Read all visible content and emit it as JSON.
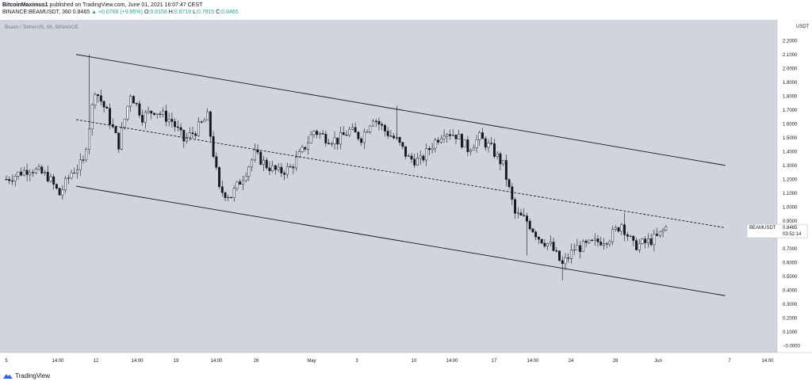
{
  "header": {
    "author": "BitcoinMaximus1",
    "published_text": "published on TradingView.com, June 01, 2021 16:07:47 CEST",
    "symbol": "BINANCE:BEAMUSDT, 360",
    "last": "0.8465",
    "change": "▲ +0.0766 (+9.95%)",
    "ohlc": [
      {
        "k": "O:",
        "v": "0.8158"
      },
      {
        "k": "H:",
        "v": "0.8719"
      },
      {
        "k": "L:",
        "v": "0.7915"
      },
      {
        "k": "C:",
        "v": "0.8465"
      }
    ]
  },
  "footer": {
    "brand": "TradingView"
  },
  "colors": {
    "background": "#d1d4dc",
    "candle": "#131722",
    "text": "#131722",
    "price_label_bg": "#ffffff"
  },
  "chart_data": {
    "type": "candlestick",
    "title": "Beam / TetherUS, 6h, BINANCE",
    "y_unit": "USDT",
    "ylim": [
      -0.05,
      2.35
    ],
    "y_ticks": [
      "2.2000",
      "2.1000",
      "2.0000",
      "1.9000",
      "1.8000",
      "1.7000",
      "1.6000",
      "1.5000",
      "1.4000",
      "1.3000",
      "1.2000",
      "1.1000",
      "1.0000",
      "0.9000",
      "0.8000",
      "0.7000",
      "0.6000",
      "0.5000",
      "0.4000",
      "0.3000",
      "0.2000",
      "0.1000",
      "0.0000"
    ],
    "x_ticks": [
      "5",
      "14:00",
      "12",
      "14:00",
      "19",
      "14:00",
      "26",
      "May",
      "3",
      "10",
      "14:00",
      "17",
      "14:00",
      "24",
      "28",
      "Jun",
      "7",
      "14:00"
    ],
    "grid": false,
    "last_price_label": {
      "symbol": "BEAMUSDT",
      "value": "0.8465",
      "countdown": "03:52:14"
    },
    "price_anchors": [
      [
        0,
        1.2
      ],
      [
        8,
        1.28
      ],
      [
        14,
        1.22
      ],
      [
        18,
        1.09
      ],
      [
        22,
        1.25
      ],
      [
        26,
        1.32
      ],
      [
        30,
        1.85
      ],
      [
        34,
        1.68
      ],
      [
        38,
        1.45
      ],
      [
        42,
        1.82
      ],
      [
        46,
        1.65
      ],
      [
        50,
        1.7
      ],
      [
        56,
        1.62
      ],
      [
        60,
        1.48
      ],
      [
        64,
        1.55
      ],
      [
        68,
        1.65
      ],
      [
        72,
        1.12
      ],
      [
        76,
        1.08
      ],
      [
        80,
        1.22
      ],
      [
        84,
        1.38
      ],
      [
        88,
        1.3
      ],
      [
        92,
        1.25
      ],
      [
        96,
        1.28
      ],
      [
        100,
        1.4
      ],
      [
        104,
        1.55
      ],
      [
        108,
        1.5
      ],
      [
        112,
        1.48
      ],
      [
        116,
        1.55
      ],
      [
        120,
        1.5
      ],
      [
        124,
        1.65
      ],
      [
        128,
        1.55
      ],
      [
        132,
        1.48
      ],
      [
        136,
        1.35
      ],
      [
        140,
        1.33
      ],
      [
        144,
        1.45
      ],
      [
        148,
        1.55
      ],
      [
        152,
        1.52
      ],
      [
        156,
        1.42
      ],
      [
        160,
        1.5
      ],
      [
        164,
        1.42
      ],
      [
        168,
        1.3
      ],
      [
        172,
        0.95
      ],
      [
        176,
        0.9
      ],
      [
        180,
        0.78
      ],
      [
        184,
        0.72
      ],
      [
        188,
        0.58
      ],
      [
        192,
        0.7
      ],
      [
        196,
        0.72
      ],
      [
        200,
        0.75
      ],
      [
        204,
        0.78
      ],
      [
        208,
        0.88
      ],
      [
        212,
        0.72
      ],
      [
        216,
        0.74
      ],
      [
        220,
        0.78
      ],
      [
        223,
        0.85
      ]
    ],
    "candle_count": 224,
    "channel": {
      "upper": [
        [
          0,
          2.1
        ],
        [
          235,
          1.3
        ]
      ],
      "middle": [
        [
          0,
          1.63
        ],
        [
          235,
          0.85
        ]
      ],
      "lower": [
        [
          0,
          1.15
        ],
        [
          235,
          0.36
        ]
      ]
    }
  }
}
